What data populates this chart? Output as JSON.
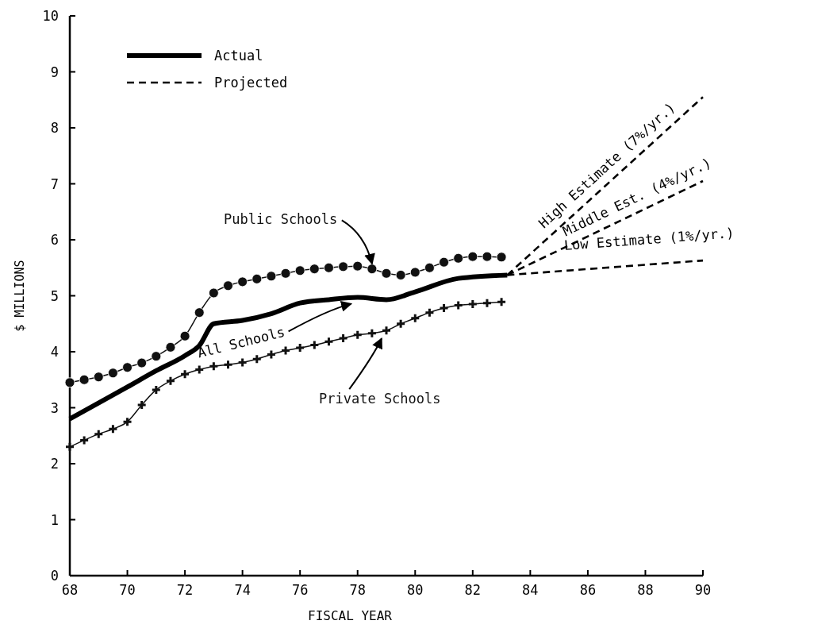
{
  "chart_data": {
    "type": "line",
    "xlabel": "FISCAL YEAR",
    "ylabel": "$ MILLIONS",
    "xlim": [
      68,
      90
    ],
    "xticks": [
      68,
      70,
      72,
      74,
      76,
      78,
      80,
      82,
      84,
      86,
      88,
      90
    ],
    "ylim": [
      0,
      10
    ],
    "yticks": [
      0,
      1,
      2,
      3,
      4,
      5,
      6,
      7,
      8,
      9,
      10
    ],
    "grid": false,
    "annotations": [
      "Actual",
      "Projected"
    ],
    "series": [
      {
        "name": "Public Schools",
        "color": "#111111",
        "marker": "circle",
        "line_style": "solid",
        "x": [
          68,
          68.5,
          69,
          69.5,
          70,
          70.5,
          71,
          71.5,
          72,
          72.5,
          73,
          73.5,
          74,
          74.5,
          75,
          75.5,
          76,
          76.5,
          77,
          77.5,
          78,
          78.5,
          79,
          79.5,
          80,
          80.5,
          81,
          81.5,
          82,
          82.5,
          83
        ],
        "values": [
          3.45,
          3.5,
          3.55,
          3.62,
          3.72,
          3.8,
          3.92,
          4.08,
          4.28,
          4.7,
          5.05,
          5.18,
          5.25,
          5.3,
          5.35,
          5.4,
          5.45,
          5.48,
          5.5,
          5.52,
          5.53,
          5.48,
          5.4,
          5.37,
          5.42,
          5.5,
          5.6,
          5.67,
          5.7,
          5.7,
          5.69
        ]
      },
      {
        "name": "All Schools",
        "color": "#000000",
        "marker": "none",
        "line_style": "solid",
        "x": [
          68,
          70,
          71,
          72,
          72.5,
          73,
          74,
          75,
          76,
          77,
          78,
          79,
          80,
          81.5,
          83.2
        ],
        "values": [
          2.8,
          3.37,
          3.66,
          3.93,
          4.11,
          4.5,
          4.56,
          4.68,
          4.87,
          4.93,
          4.97,
          4.93,
          5.07,
          5.31,
          5.37
        ]
      },
      {
        "name": "Private Schools",
        "color": "#111111",
        "marker": "cross",
        "line_style": "solid",
        "x": [
          68,
          68.5,
          69,
          69.5,
          70,
          70.5,
          71,
          71.5,
          72,
          72.5,
          73,
          73.5,
          74,
          74.5,
          75,
          75.5,
          76,
          76.5,
          77,
          77.5,
          78,
          78.5,
          79,
          79.5,
          80,
          80.5,
          81,
          81.5,
          82,
          82.5,
          83
        ],
        "values": [
          2.3,
          2.42,
          2.53,
          2.62,
          2.75,
          3.05,
          3.32,
          3.48,
          3.6,
          3.68,
          3.74,
          3.77,
          3.81,
          3.87,
          3.95,
          4.02,
          4.07,
          4.12,
          4.18,
          4.24,
          4.3,
          4.33,
          4.38,
          4.5,
          4.6,
          4.7,
          4.78,
          4.83,
          4.85,
          4.87,
          4.89
        ]
      },
      {
        "name": "High Estimate (7%/yr.)",
        "color": "#000000",
        "marker": "none",
        "line_style": "dashed",
        "x": [
          83.2,
          90
        ],
        "values": [
          5.37,
          8.55
        ]
      },
      {
        "name": "Middle Est. (4%/yr.)",
        "color": "#000000",
        "marker": "none",
        "line_style": "dashed",
        "x": [
          83.2,
          90
        ],
        "values": [
          5.37,
          7.05
        ]
      },
      {
        "name": "Low Estimate (1%/yr.)",
        "color": "#000000",
        "marker": "none",
        "line_style": "dashed",
        "x": [
          83.2,
          90
        ],
        "values": [
          5.37,
          5.63
        ]
      }
    ]
  }
}
